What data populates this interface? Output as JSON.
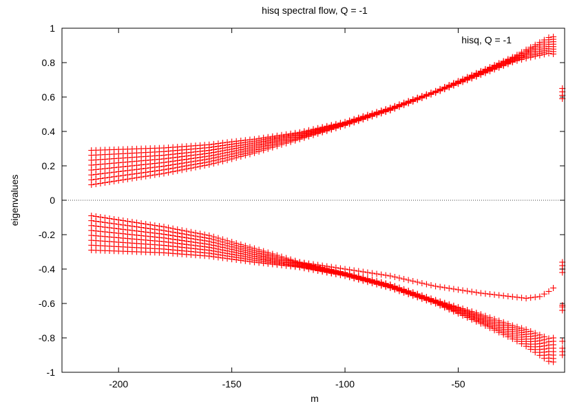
{
  "chart_data": {
    "type": "scatter",
    "title": "hisq spectral flow, Q = -1",
    "xlabel": "m",
    "ylabel": "eigenvalues",
    "xlim": [
      -225,
      -3
    ],
    "ylim": [
      -1,
      1
    ],
    "xticks": [
      -200,
      -150,
      -100,
      -50
    ],
    "yticks": [
      -1,
      -0.8,
      -0.6,
      -0.4,
      -0.2,
      0,
      0.2,
      0.4,
      0.6,
      0.8,
      1
    ],
    "xtick_labels": [
      "-200",
      "-150",
      "-100",
      "-50"
    ],
    "ytick_labels": [
      "-1",
      "-0.8",
      "-0.6",
      "-0.4",
      "-0.2",
      "0",
      "0.2",
      "0.4",
      "0.6",
      "0.8",
      "1"
    ],
    "zero_line": true,
    "legend": {
      "label": "hisq, Q = -1",
      "position": "top-right"
    },
    "marker": "plus",
    "color": "#ff0000",
    "x_start": -212,
    "x_step": 2,
    "x_count": 106,
    "bands": [
      {
        "name": "upper band",
        "knots": [
          [
            -212,
            0.19
          ],
          [
            -200,
            0.205
          ],
          [
            -180,
            0.23
          ],
          [
            -160,
            0.265
          ],
          [
            -140,
            0.315
          ],
          [
            -120,
            0.375
          ],
          [
            -100,
            0.445
          ],
          [
            -80,
            0.53
          ],
          [
            -60,
            0.63
          ],
          [
            -40,
            0.74
          ],
          [
            -20,
            0.85
          ],
          [
            -10,
            0.9
          ],
          [
            -8,
            0.9
          ]
        ],
        "spread": [
          [
            -212,
            0.1
          ],
          [
            -150,
            0.05
          ],
          [
            -120,
            0.02
          ],
          [
            -100,
            0.01
          ],
          [
            -60,
            0.005
          ],
          [
            -25,
            0.015
          ],
          [
            -8,
            0.05
          ]
        ],
        "rows": 8
      },
      {
        "name": "lower band",
        "knots": [
          [
            -212,
            -0.19
          ],
          [
            -200,
            -0.205
          ],
          [
            -180,
            -0.23
          ],
          [
            -160,
            -0.265
          ],
          [
            -140,
            -0.32
          ],
          [
            -120,
            -0.375
          ],
          [
            -100,
            -0.43
          ],
          [
            -80,
            -0.5
          ],
          [
            -60,
            -0.59
          ],
          [
            -40,
            -0.69
          ],
          [
            -20,
            -0.8
          ],
          [
            -10,
            -0.87
          ],
          [
            -8,
            -0.87
          ]
        ],
        "spread": [
          [
            -212,
            0.1
          ],
          [
            -160,
            0.06
          ],
          [
            -140,
            0.04
          ],
          [
            -120,
            0.015
          ],
          [
            -100,
            0.01
          ],
          [
            -60,
            0.01
          ],
          [
            -25,
            0.04
          ],
          [
            -8,
            0.07
          ]
        ],
        "rows": 8
      },
      {
        "name": "middle branch",
        "knots": [
          [
            -120,
            -0.36
          ],
          [
            -100,
            -0.4
          ],
          [
            -80,
            -0.44
          ],
          [
            -60,
            -0.5
          ],
          [
            -40,
            -0.54
          ],
          [
            -20,
            -0.57
          ],
          [
            -14,
            -0.56
          ],
          [
            -10,
            -0.53
          ],
          [
            -8,
            -0.51
          ]
        ],
        "spread": [
          [
            -120,
            0.005
          ],
          [
            -8,
            0.005
          ]
        ],
        "rows": 1
      }
    ],
    "edge_points": [
      [
        -4,
        0.61
      ],
      [
        -4,
        0.63
      ],
      [
        -4,
        0.65
      ],
      [
        -4,
        0.59
      ],
      [
        -4,
        -0.36
      ],
      [
        -4,
        -0.38
      ],
      [
        -4,
        -0.4
      ],
      [
        -4,
        -0.42
      ],
      [
        -4,
        -0.61
      ],
      [
        -4,
        -0.62
      ],
      [
        -4,
        -0.64
      ],
      [
        -4,
        -0.82
      ],
      [
        -4,
        -0.86
      ],
      [
        -4,
        -0.88
      ],
      [
        -4,
        -0.9
      ]
    ]
  }
}
